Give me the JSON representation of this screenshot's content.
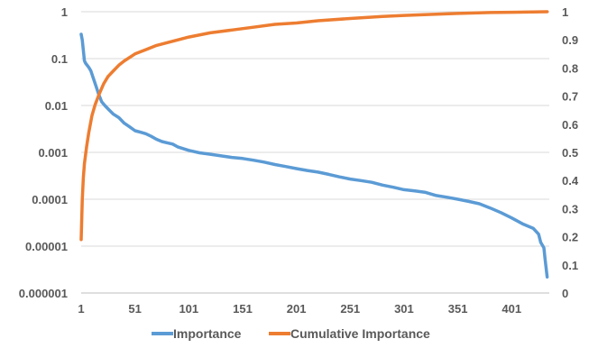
{
  "chart_data": {
    "type": "line",
    "title": "",
    "xlabel": "",
    "ylabel": "",
    "x_range": [
      1,
      436
    ],
    "x_ticks": [
      "1",
      "51",
      "101",
      "151",
      "201",
      "251",
      "301",
      "351",
      "401"
    ],
    "y_left": {
      "scale": "log",
      "ylim": [
        1e-06,
        1
      ],
      "ticks": [
        "1",
        "0.1",
        "0.01",
        "0.001",
        "0.0001",
        "0.00001",
        "0.000001"
      ]
    },
    "y_right": {
      "scale": "linear",
      "ylim": [
        0,
        1
      ],
      "ticks": [
        "1",
        "0.9",
        "0.8",
        "0.7",
        "0.6",
        "0.5",
        "0.4",
        "0.3",
        "0.2",
        "0.1",
        "0"
      ]
    },
    "grid": "horizontal",
    "legend_position": "bottom",
    "series": [
      {
        "name": "Importance",
        "axis": "left",
        "color": "#5B9BD5",
        "points": [
          [
            1,
            0.33
          ],
          [
            2,
            0.25
          ],
          [
            3,
            0.15
          ],
          [
            4,
            0.09
          ],
          [
            5,
            0.08
          ],
          [
            8,
            0.065
          ],
          [
            10,
            0.055
          ],
          [
            12,
            0.04
          ],
          [
            15,
            0.025
          ],
          [
            17,
            0.018
          ],
          [
            20,
            0.012
          ],
          [
            23,
            0.01
          ],
          [
            27,
            0.008
          ],
          [
            31,
            0.0065
          ],
          [
            36,
            0.0055
          ],
          [
            41,
            0.0042
          ],
          [
            46,
            0.0035
          ],
          [
            51,
            0.0029
          ],
          [
            56,
            0.0027
          ],
          [
            61,
            0.0025
          ],
          [
            66,
            0.0022
          ],
          [
            71,
            0.0019
          ],
          [
            76,
            0.0017
          ],
          [
            81,
            0.0016
          ],
          [
            86,
            0.0015
          ],
          [
            91,
            0.0013
          ],
          [
            96,
            0.0012
          ],
          [
            101,
            0.0011
          ],
          [
            111,
            0.00098
          ],
          [
            121,
            0.00091
          ],
          [
            131,
            0.00084
          ],
          [
            141,
            0.00078
          ],
          [
            151,
            0.00074
          ],
          [
            161,
            0.00068
          ],
          [
            171,
            0.00062
          ],
          [
            181,
            0.00055
          ],
          [
            191,
            0.0005
          ],
          [
            201,
            0.00045
          ],
          [
            211,
            0.00041
          ],
          [
            221,
            0.00038
          ],
          [
            231,
            0.00034
          ],
          [
            241,
            0.0003
          ],
          [
            251,
            0.00027
          ],
          [
            261,
            0.00025
          ],
          [
            271,
            0.00023
          ],
          [
            281,
            0.0002
          ],
          [
            291,
            0.00018
          ],
          [
            301,
            0.00016
          ],
          [
            311,
            0.00015
          ],
          [
            321,
            0.00014
          ],
          [
            331,
            0.00012
          ],
          [
            341,
            0.00011
          ],
          [
            351,
            0.0001
          ],
          [
            361,
            9e-05
          ],
          [
            371,
            8e-05
          ],
          [
            381,
            6.5e-05
          ],
          [
            391,
            5.2e-05
          ],
          [
            401,
            4e-05
          ],
          [
            411,
            3e-05
          ],
          [
            421,
            2.4e-05
          ],
          [
            426,
            1.8e-05
          ],
          [
            428,
            1.2e-05
          ],
          [
            431,
            9.2e-06
          ],
          [
            432,
            5.5e-06
          ],
          [
            434,
            2.2e-06
          ]
        ]
      },
      {
        "name": "Cumulative Importance",
        "axis": "right",
        "color": "#ED7D31",
        "points": [
          [
            1,
            0.19
          ],
          [
            2,
            0.33
          ],
          [
            3,
            0.41
          ],
          [
            4,
            0.46
          ],
          [
            6,
            0.52
          ],
          [
            8,
            0.57
          ],
          [
            11,
            0.63
          ],
          [
            14,
            0.67
          ],
          [
            18,
            0.71
          ],
          [
            22,
            0.745
          ],
          [
            26,
            0.77
          ],
          [
            31,
            0.79
          ],
          [
            36,
            0.81
          ],
          [
            41,
            0.825
          ],
          [
            51,
            0.85
          ],
          [
            61,
            0.865
          ],
          [
            71,
            0.88
          ],
          [
            81,
            0.89
          ],
          [
            91,
            0.9
          ],
          [
            101,
            0.91
          ],
          [
            121,
            0.925
          ],
          [
            141,
            0.935
          ],
          [
            161,
            0.945
          ],
          [
            181,
            0.955
          ],
          [
            201,
            0.96
          ],
          [
            221,
            0.968
          ],
          [
            251,
            0.976
          ],
          [
            281,
            0.983
          ],
          [
            301,
            0.987
          ],
          [
            331,
            0.991
          ],
          [
            351,
            0.994
          ],
          [
            381,
            0.997
          ],
          [
            401,
            0.998
          ],
          [
            421,
            0.999
          ],
          [
            434,
            1.0
          ]
        ]
      }
    ]
  }
}
